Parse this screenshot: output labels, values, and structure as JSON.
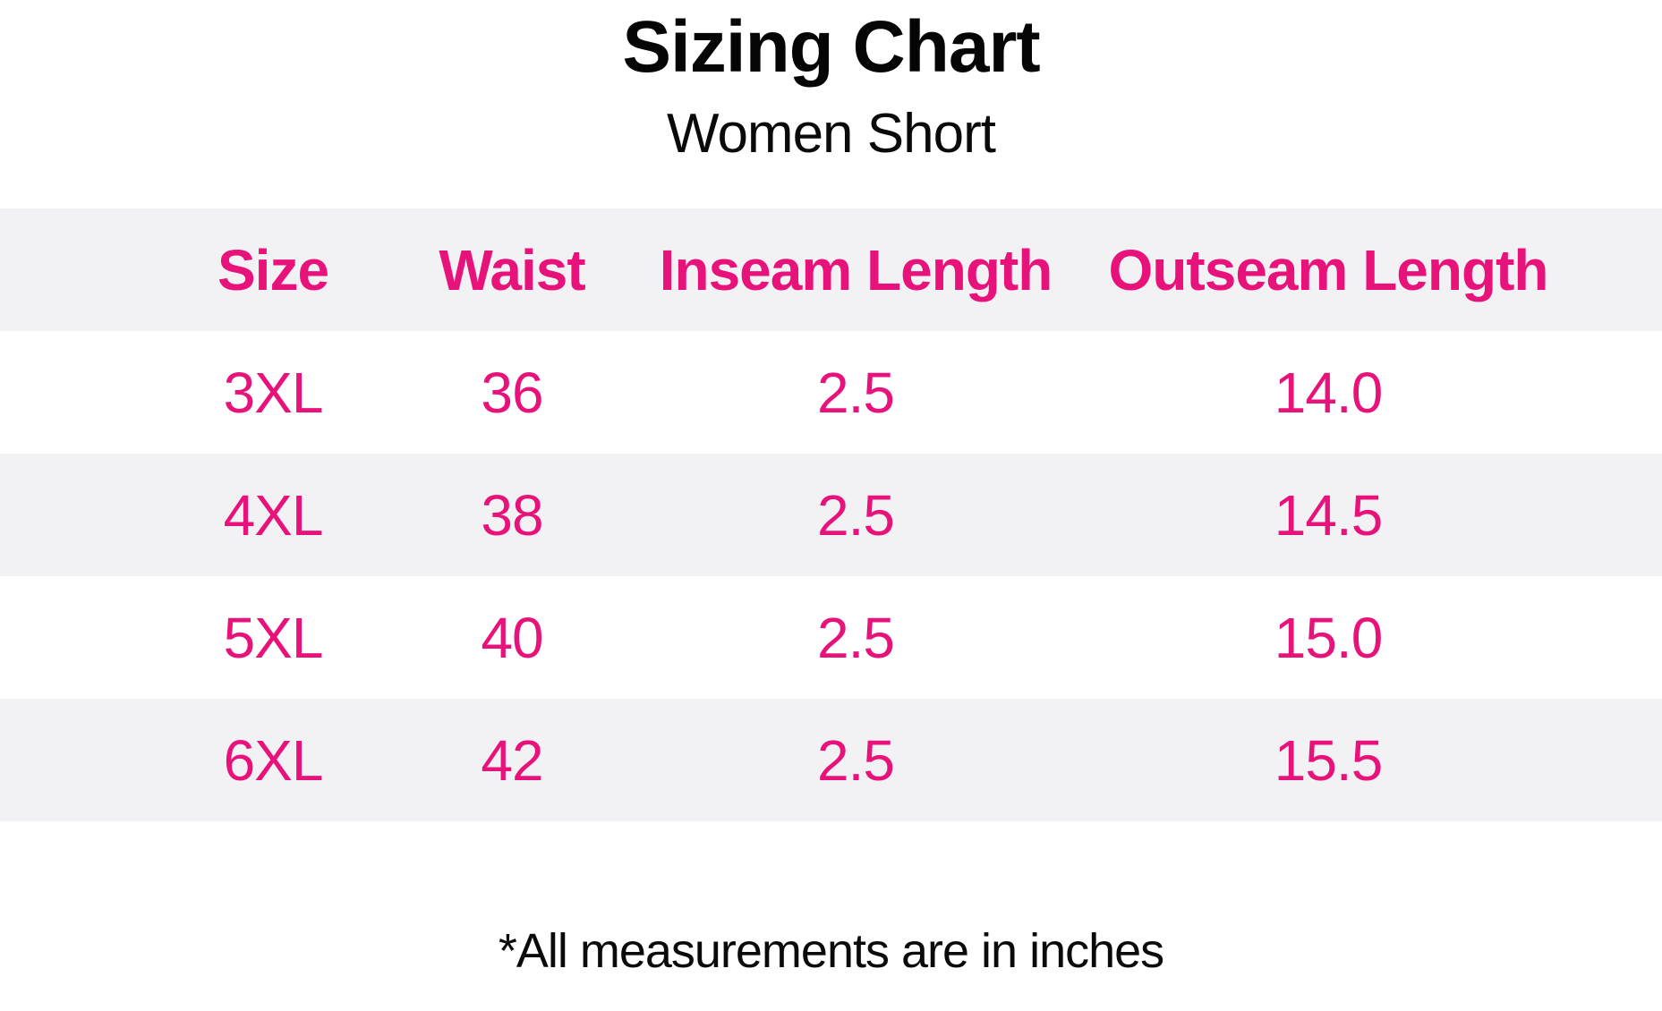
{
  "title": "Sizing Chart",
  "subtitle": "Women Short",
  "footnote": "*All measurements are in inches",
  "colors": {
    "accent_pink": "#e8127b",
    "row_alt_bg": "#f2f2f4",
    "text_black": "#0a0a0a",
    "page_bg": "#ffffff"
  },
  "chart_data": {
    "type": "table",
    "title": "Sizing Chart",
    "subtitle": "Women Short",
    "columns": [
      "Size",
      "Waist",
      "Inseam Length",
      "Outseam Length"
    ],
    "rows": [
      [
        "3XL",
        "36",
        "2.5",
        "14.0"
      ],
      [
        "4XL",
        "38",
        "2.5",
        "14.5"
      ],
      [
        "5XL",
        "40",
        "2.5",
        "15.0"
      ],
      [
        "6XL",
        "42",
        "2.5",
        "15.5"
      ]
    ],
    "footnote": "*All measurements are in inches",
    "units": "inches",
    "layout": {
      "header_bg": "#f2f2f4",
      "stripe_pattern": [
        "white",
        "#f2f2f4",
        "white",
        "#f2f2f4"
      ],
      "grid": "off",
      "text_color": "#e8127b"
    }
  }
}
